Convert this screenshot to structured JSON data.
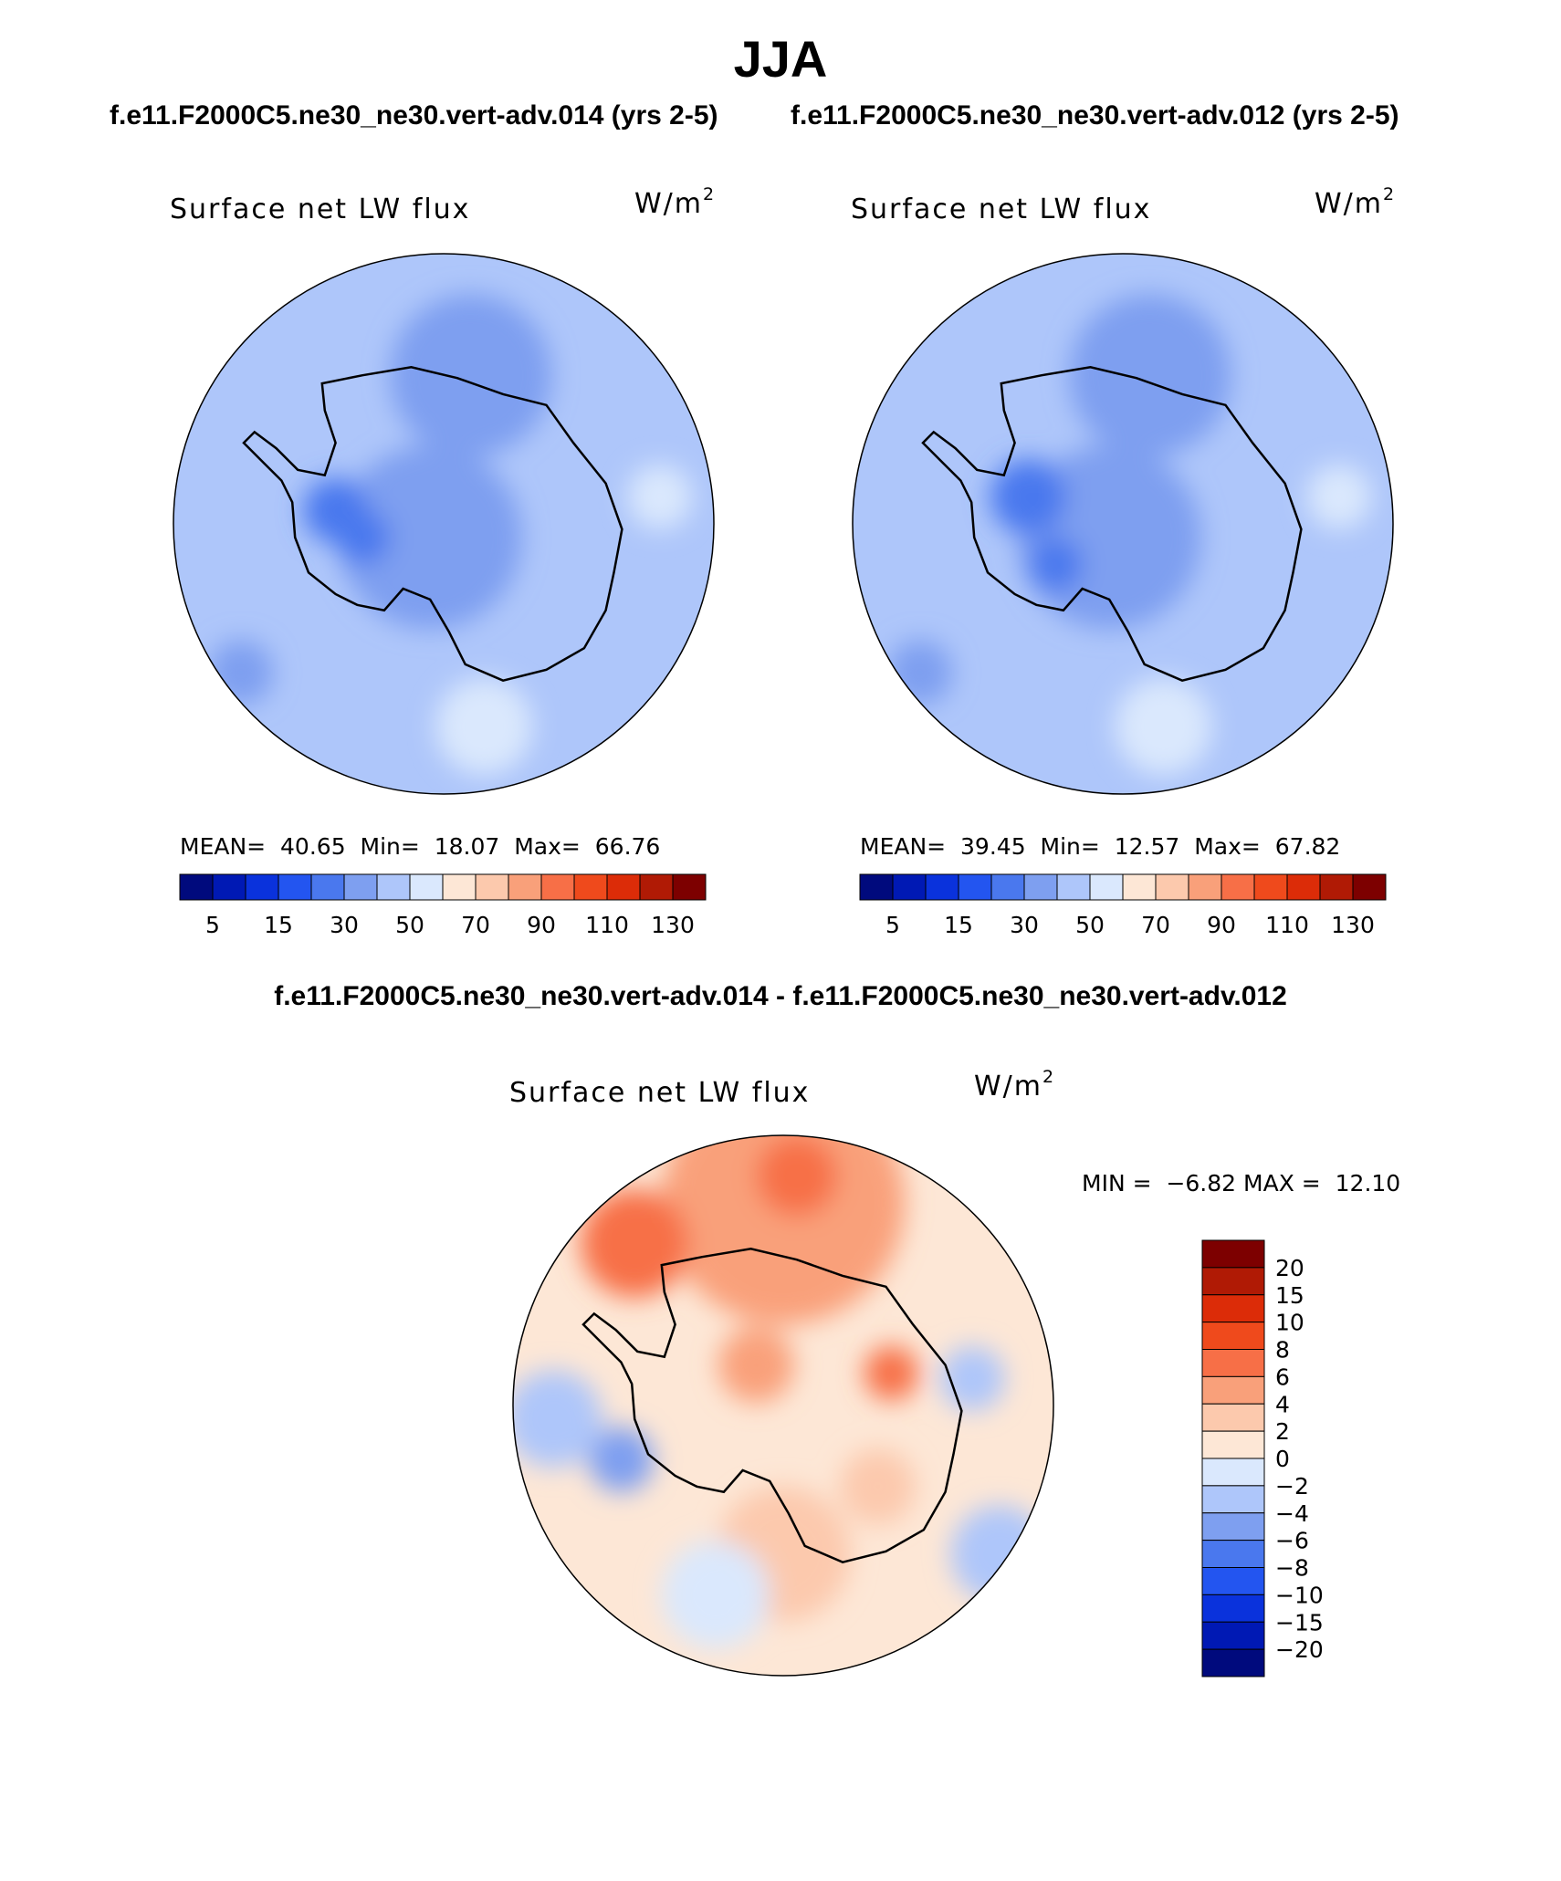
{
  "figure": {
    "title": "JJA",
    "case_left": "f.e11.F2000C5.ne30_ne30.vert-adv.014 (yrs 2-5)",
    "case_right": "f.e11.F2000C5.ne30_ne30.vert-adv.012 (yrs 2-5)",
    "diff_title": "f.e11.F2000C5.ne30_ne30.vert-adv.014 - f.e11.F2000C5.ne30_ne30.vert-adv.012"
  },
  "panels": [
    {
      "variable": "Surface net LW flux",
      "units": "W/m",
      "units_exp": "2",
      "mean_label": "MEAN=",
      "mean": "40.65",
      "min_label": "Min=",
      "min": "18.07",
      "max_label": "Max=",
      "max": "66.76"
    },
    {
      "variable": "Surface net LW flux",
      "units": "W/m",
      "units_exp": "2",
      "mean_label": "MEAN=",
      "mean": "39.45",
      "min_label": "Min=",
      "min": "12.57",
      "max_label": "Max=",
      "max": "67.82"
    },
    {
      "variable": "Surface net LW flux",
      "units": "W/m",
      "units_exp": "2",
      "min_label": "MIN =",
      "min": "−6.82",
      "max_label": "MAX =",
      "max": "12.10"
    }
  ],
  "chart_data": [
    {
      "type": "heatmap",
      "projection": "south polar stereographic",
      "title": "Surface net LW flux",
      "units": "W/m2",
      "stats": {
        "mean": 40.65,
        "min": 18.07,
        "max": 66.76
      },
      "colorbar_tick_labels": [
        "5",
        "15",
        "30",
        "50",
        "70",
        "90",
        "110",
        "130"
      ],
      "colorbar_colors": [
        "#000a7d",
        "#0019b4",
        "#0a32dc",
        "#2355f0",
        "#4a78ee",
        "#7e9ff0",
        "#aec6fa",
        "#dae8fd",
        "#fde7d6",
        "#fcc9ad",
        "#f9a07a",
        "#f76f47",
        "#ef4a1c",
        "#dc2c08",
        "#b01a05",
        "#7d0000"
      ],
      "fields": [
        {
          "cx": -0.05,
          "cy": 0.05,
          "r": 0.34,
          "color": "#7e9ff0"
        },
        {
          "cx": -0.4,
          "cy": -0.05,
          "r": 0.12,
          "color": "#4a78ee"
        },
        {
          "cx": -0.3,
          "cy": 0.05,
          "r": 0.1,
          "color": "#4a78ee"
        },
        {
          "cx": 0.1,
          "cy": -0.55,
          "r": 0.3,
          "color": "#7e9ff0"
        },
        {
          "cx": 0.15,
          "cy": 0.75,
          "r": 0.18,
          "color": "#dae8fd"
        },
        {
          "cx": 0.8,
          "cy": -0.1,
          "r": 0.12,
          "color": "#dae8fd"
        },
        {
          "cx": -0.75,
          "cy": 0.55,
          "r": 0.12,
          "color": "#7e9ff0"
        }
      ]
    },
    {
      "type": "heatmap",
      "projection": "south polar stereographic",
      "title": "Surface net LW flux",
      "units": "W/m2",
      "stats": {
        "mean": 39.45,
        "min": 12.57,
        "max": 67.82
      },
      "colorbar_tick_labels": [
        "5",
        "15",
        "30",
        "50",
        "70",
        "90",
        "110",
        "130"
      ],
      "colorbar_colors": [
        "#000a7d",
        "#0019b4",
        "#0a32dc",
        "#2355f0",
        "#4a78ee",
        "#7e9ff0",
        "#aec6fa",
        "#dae8fd",
        "#fde7d6",
        "#fcc9ad",
        "#f9a07a",
        "#f76f47",
        "#ef4a1c",
        "#dc2c08",
        "#b01a05",
        "#7d0000"
      ],
      "fields": [
        {
          "cx": -0.05,
          "cy": 0.05,
          "r": 0.34,
          "color": "#7e9ff0"
        },
        {
          "cx": -0.35,
          "cy": -0.1,
          "r": 0.14,
          "color": "#4a78ee"
        },
        {
          "cx": -0.25,
          "cy": 0.15,
          "r": 0.1,
          "color": "#4a78ee"
        },
        {
          "cx": 0.1,
          "cy": -0.55,
          "r": 0.3,
          "color": "#7e9ff0"
        },
        {
          "cx": 0.15,
          "cy": 0.75,
          "r": 0.18,
          "color": "#dae8fd"
        },
        {
          "cx": 0.8,
          "cy": -0.1,
          "r": 0.12,
          "color": "#dae8fd"
        },
        {
          "cx": -0.75,
          "cy": 0.55,
          "r": 0.12,
          "color": "#7e9ff0"
        }
      ]
    },
    {
      "type": "heatmap",
      "projection": "south polar stereographic",
      "title": "Surface net LW flux",
      "units": "W/m2",
      "stats": {
        "min": -6.82,
        "max": 12.1
      },
      "colorbar_tick_labels": [
        "20",
        "15",
        "10",
        "8",
        "6",
        "4",
        "2",
        "0",
        "−2",
        "−4",
        "−6",
        "−8",
        "−10",
        "−15",
        "−20"
      ],
      "colorbar_colors": [
        "#7d0000",
        "#b01a05",
        "#dc2c08",
        "#ef4a1c",
        "#f76f47",
        "#f9a07a",
        "#fcc9ad",
        "#fde7d6",
        "#dae8fd",
        "#aec6fa",
        "#7e9ff0",
        "#4a78ee",
        "#2355f0",
        "#0a32dc",
        "#0019b4",
        "#000a7d"
      ],
      "fields": [
        {
          "cx": 0.0,
          "cy": -0.75,
          "r": 0.45,
          "color": "#f9a07a"
        },
        {
          "cx": -0.55,
          "cy": -0.6,
          "r": 0.2,
          "color": "#f76f47"
        },
        {
          "cx": 0.05,
          "cy": -0.85,
          "r": 0.15,
          "color": "#f76f47"
        },
        {
          "cx": -0.1,
          "cy": -0.15,
          "r": 0.14,
          "color": "#f9a07a"
        },
        {
          "cx": 0.4,
          "cy": -0.12,
          "r": 0.1,
          "color": "#f76f47"
        },
        {
          "cx": -0.6,
          "cy": 0.2,
          "r": 0.12,
          "color": "#7e9ff0"
        },
        {
          "cx": -0.85,
          "cy": 0.05,
          "r": 0.18,
          "color": "#aec6fa"
        },
        {
          "cx": 0.8,
          "cy": 0.55,
          "r": 0.18,
          "color": "#aec6fa"
        },
        {
          "cx": 0.7,
          "cy": -0.1,
          "r": 0.12,
          "color": "#aec6fa"
        },
        {
          "cx": 0.0,
          "cy": 0.55,
          "r": 0.25,
          "color": "#fcc9ad"
        },
        {
          "cx": 0.35,
          "cy": 0.3,
          "r": 0.14,
          "color": "#fcc9ad"
        },
        {
          "cx": -0.25,
          "cy": 0.7,
          "r": 0.2,
          "color": "#dae8fd"
        }
      ]
    }
  ]
}
